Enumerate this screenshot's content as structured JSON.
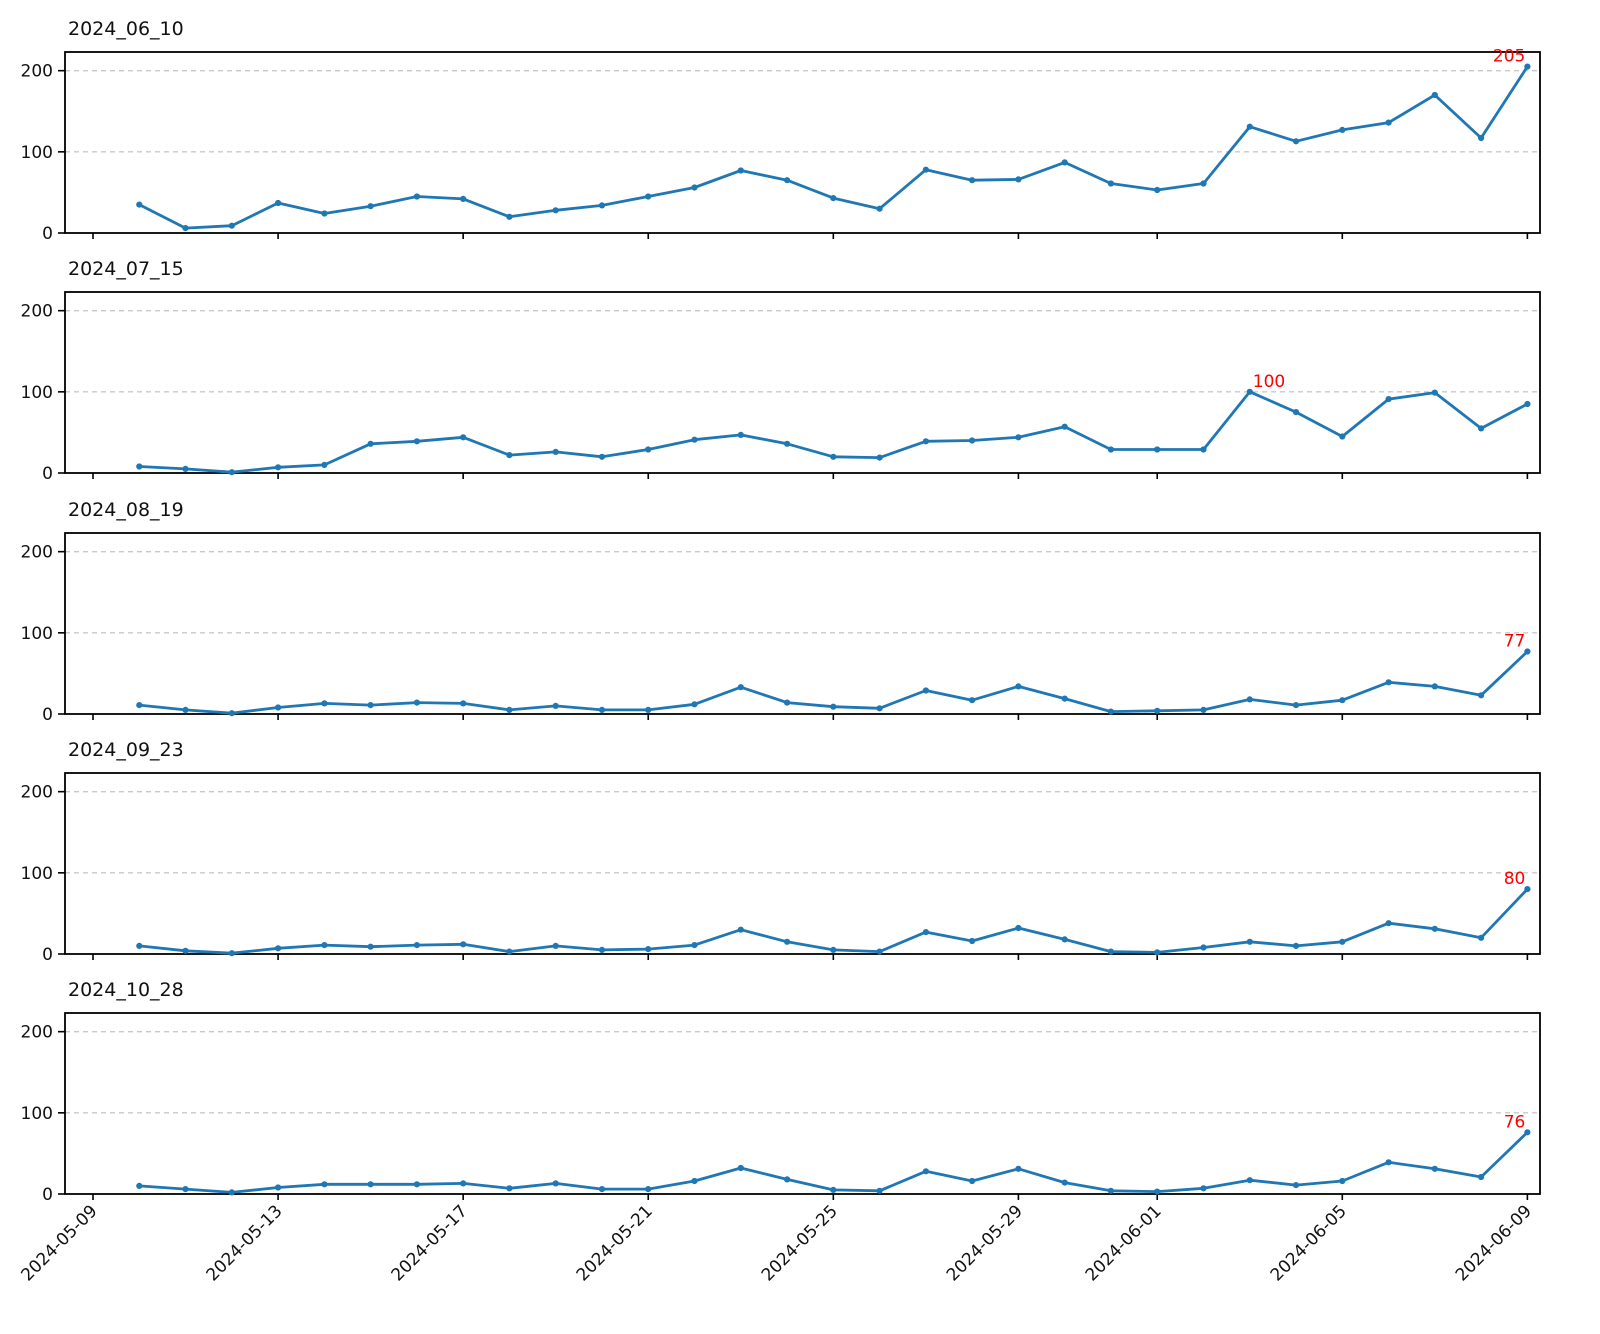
{
  "figure": {
    "background": "#ffffff"
  },
  "style": {
    "line_color": "#1f77b4",
    "marker_color": "#1f77b4",
    "annotation_color": "#ff0000",
    "grid_color": "#c9c9c9",
    "axis_color": "#000000",
    "text_color": "#111111"
  },
  "axis": {
    "yticks": [
      0,
      100,
      200
    ],
    "ylim": [
      0,
      223
    ],
    "grid": "horizontal dashed at 100 and 200",
    "legend": "none",
    "xticks": [
      {
        "label": "2024-05-09",
        "day": 0
      },
      {
        "label": "2024-05-13",
        "day": 4
      },
      {
        "label": "2024-05-17",
        "day": 8
      },
      {
        "label": "2024-05-21",
        "day": 12
      },
      {
        "label": "2024-05-25",
        "day": 16
      },
      {
        "label": "2024-05-29",
        "day": 20
      },
      {
        "label": "2024-06-01",
        "day": 23
      },
      {
        "label": "2024-06-05",
        "day": 27
      },
      {
        "label": "2024-06-09",
        "day": 31
      }
    ]
  },
  "chart_data": {
    "type": "line",
    "x": [
      "2024-05-10",
      "2024-05-11",
      "2024-05-12",
      "2024-05-13",
      "2024-05-14",
      "2024-05-15",
      "2024-05-16",
      "2024-05-17",
      "2024-05-18",
      "2024-05-19",
      "2024-05-20",
      "2024-05-21",
      "2024-05-22",
      "2024-05-23",
      "2024-05-24",
      "2024-05-25",
      "2024-05-26",
      "2024-05-27",
      "2024-05-28",
      "2024-05-29",
      "2024-05-30",
      "2024-05-31",
      "2024-06-01",
      "2024-06-02",
      "2024-06-03",
      "2024-06-04",
      "2024-06-05",
      "2024-06-06",
      "2024-06-07",
      "2024-06-08",
      "2024-06-09"
    ],
    "charts": [
      {
        "title": "2024_06_10",
        "values": [
          35,
          6,
          9,
          37,
          24,
          33,
          45,
          42,
          20,
          28,
          34,
          45,
          56,
          77,
          65,
          43,
          30,
          78,
          65,
          66,
          87,
          61,
          53,
          61,
          131,
          113,
          127,
          136,
          170,
          117,
          205
        ],
        "annotation": {
          "text": "205",
          "index": 30
        }
      },
      {
        "title": "2024_07_15",
        "values": [
          8,
          5,
          1,
          7,
          10,
          36,
          39,
          44,
          22,
          26,
          20,
          29,
          41,
          47,
          36,
          20,
          19,
          39,
          40,
          44,
          57,
          29,
          29,
          29,
          100,
          75,
          45,
          91,
          99,
          55,
          85
        ],
        "annotation": {
          "text": "100",
          "index": 24
        }
      },
      {
        "title": "2024_08_19",
        "values": [
          11,
          5,
          1,
          8,
          13,
          11,
          14,
          13,
          5,
          10,
          5,
          5,
          12,
          33,
          14,
          9,
          7,
          29,
          17,
          34,
          19,
          3,
          4,
          5,
          18,
          11,
          17,
          39,
          34,
          23,
          77
        ],
        "annotation": {
          "text": "77",
          "index": 30
        }
      },
      {
        "title": "2024_09_23",
        "values": [
          10,
          4,
          1,
          7,
          11,
          9,
          11,
          12,
          3,
          10,
          5,
          6,
          11,
          30,
          15,
          5,
          3,
          27,
          16,
          32,
          18,
          3,
          2,
          8,
          15,
          10,
          15,
          38,
          31,
          20,
          80
        ],
        "annotation": {
          "text": "80",
          "index": 30
        }
      },
      {
        "title": "2024_10_28",
        "values": [
          10,
          6,
          2,
          8,
          12,
          12,
          12,
          13,
          7,
          13,
          6,
          6,
          16,
          32,
          18,
          5,
          4,
          28,
          16,
          31,
          14,
          4,
          3,
          7,
          17,
          11,
          16,
          39,
          31,
          21,
          76
        ],
        "annotation": {
          "text": "76",
          "index": 30
        }
      }
    ]
  }
}
